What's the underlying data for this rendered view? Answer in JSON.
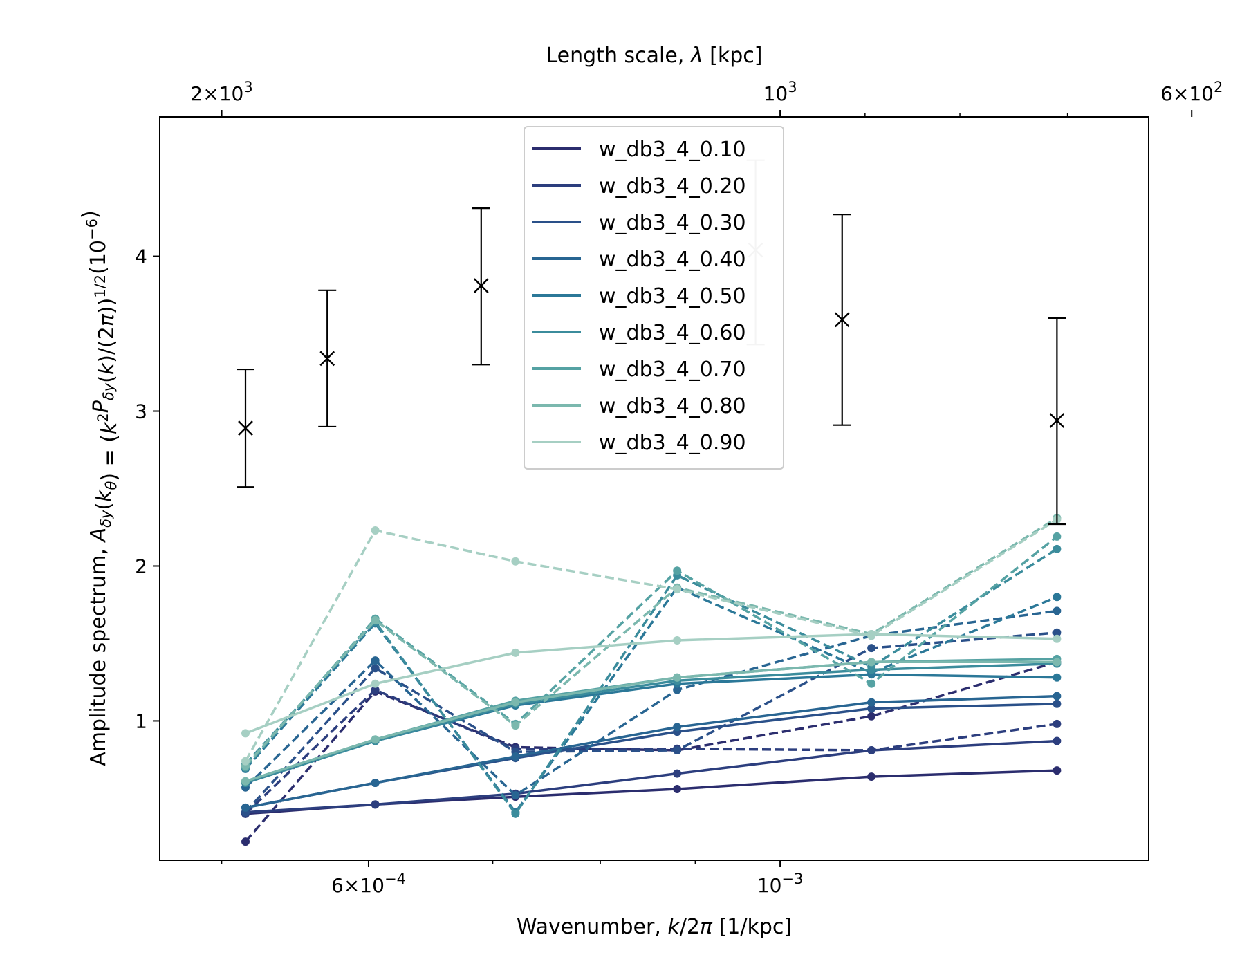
{
  "chart_data": {
    "type": "line",
    "xlabel": "Wavenumber, k/2π [1/kpc]",
    "x2label": "Length scale, λ [kpc]",
    "ylabel": "Amplitude spectrum, A_δy(k_θ) = (k²P_δy(k)/(2π))^1/2 (10⁻⁶)",
    "x_scale": "log",
    "xlim": [
      0.000463,
      0.00158
    ],
    "ylim": [
      0.1,
      4.9
    ],
    "x_ticks": [
      {
        "value": 0.0006,
        "label": "6×10⁻⁴"
      },
      {
        "value": 0.001,
        "label": "10⁻³"
      }
    ],
    "x_minor_ticks": [
      0.0005,
      0.0007,
      0.0008,
      0.0009
    ],
    "x2_ticks": [
      {
        "lambda": 2000,
        "label": "2×10³"
      },
      {
        "lambda": 1000,
        "label": "10³"
      },
      {
        "lambda": 600,
        "label": "6×10²"
      }
    ],
    "x2_minor_ticks": [
      900,
      800,
      700
    ],
    "y_ticks": [
      1,
      2,
      3,
      4
    ],
    "x": [
      0.000515,
      0.000605,
      0.00072,
      0.00088,
      0.00112,
      0.00141
    ],
    "observations": {
      "marker": "x",
      "points": [
        {
          "x": 0.000515,
          "y": 2.89,
          "lo": 2.51,
          "hi": 3.27
        },
        {
          "x": 0.00057,
          "y": 3.34,
          "lo": 2.9,
          "hi": 3.78
        },
        {
          "x": 0.00069,
          "y": 3.81,
          "lo": 3.3,
          "hi": 4.31
        },
        {
          "x": 0.00097,
          "y": 4.04,
          "lo": 3.43,
          "hi": 4.62,
          "faded": true
        },
        {
          "x": 0.00108,
          "y": 3.59,
          "lo": 2.91,
          "hi": 4.27
        },
        {
          "x": 0.00141,
          "y": 2.94,
          "lo": 2.27,
          "hi": 3.6
        }
      ]
    },
    "series": [
      {
        "name": "w_db3_4_0.10",
        "color": "#2b2d6e",
        "solid": [
          0.4,
          0.46,
          0.51,
          0.56,
          0.64,
          0.68
        ],
        "dashed": [
          0.22,
          1.19,
          0.83,
          0.81,
          1.03,
          1.38
        ]
      },
      {
        "name": "w_db3_4_0.20",
        "color": "#2c3e7e",
        "solid": [
          0.41,
          0.46,
          0.53,
          0.66,
          0.81,
          0.87
        ],
        "dashed": [
          0.4,
          1.2,
          0.82,
          0.82,
          0.81,
          0.98
        ]
      },
      {
        "name": "w_db3_4_0.30",
        "color": "#2a5089",
        "solid": [
          0.44,
          0.6,
          0.76,
          0.93,
          1.08,
          1.11
        ],
        "dashed": [
          0.41,
          1.34,
          0.8,
          0.81,
          1.47,
          1.57
        ]
      },
      {
        "name": "w_db3_4_0.40",
        "color": "#286592",
        "solid": [
          0.44,
          0.6,
          0.77,
          0.96,
          1.12,
          1.16
        ],
        "dashed": [
          0.57,
          1.39,
          0.52,
          1.2,
          1.55,
          1.71
        ]
      },
      {
        "name": "w_db3_4_0.50",
        "color": "#2b7898",
        "solid": [
          0.6,
          0.87,
          1.1,
          1.24,
          1.3,
          1.28
        ],
        "dashed": [
          0.69,
          1.63,
          0.41,
          1.86,
          1.31,
          1.8
        ]
      },
      {
        "name": "w_db3_4_0.60",
        "color": "#3b8c9c",
        "solid": [
          0.6,
          0.87,
          1.11,
          1.26,
          1.33,
          1.37
        ],
        "dashed": [
          0.72,
          1.64,
          0.4,
          1.94,
          1.35,
          2.11
        ]
      },
      {
        "name": "w_db3_4_0.70",
        "color": "#55a2a3",
        "solid": [
          0.61,
          0.88,
          1.13,
          1.28,
          1.38,
          1.4
        ],
        "dashed": [
          0.7,
          1.66,
          0.98,
          1.97,
          1.24,
          2.19
        ]
      },
      {
        "name": "w_db3_4_0.80",
        "color": "#7bb8ae",
        "solid": [
          0.61,
          0.88,
          1.12,
          1.28,
          1.38,
          1.38
        ],
        "dashed": [
          0.71,
          1.65,
          0.97,
          1.86,
          1.56,
          2.31
        ]
      },
      {
        "name": "w_db3_4_0.90",
        "color": "#a6cfc3",
        "solid": [
          0.92,
          1.24,
          1.44,
          1.52,
          1.56,
          1.53
        ],
        "dashed": [
          0.74,
          2.23,
          2.03,
          1.85,
          1.55,
          2.3
        ]
      }
    ],
    "legend": {
      "position": "upper-center"
    },
    "grid": false
  }
}
